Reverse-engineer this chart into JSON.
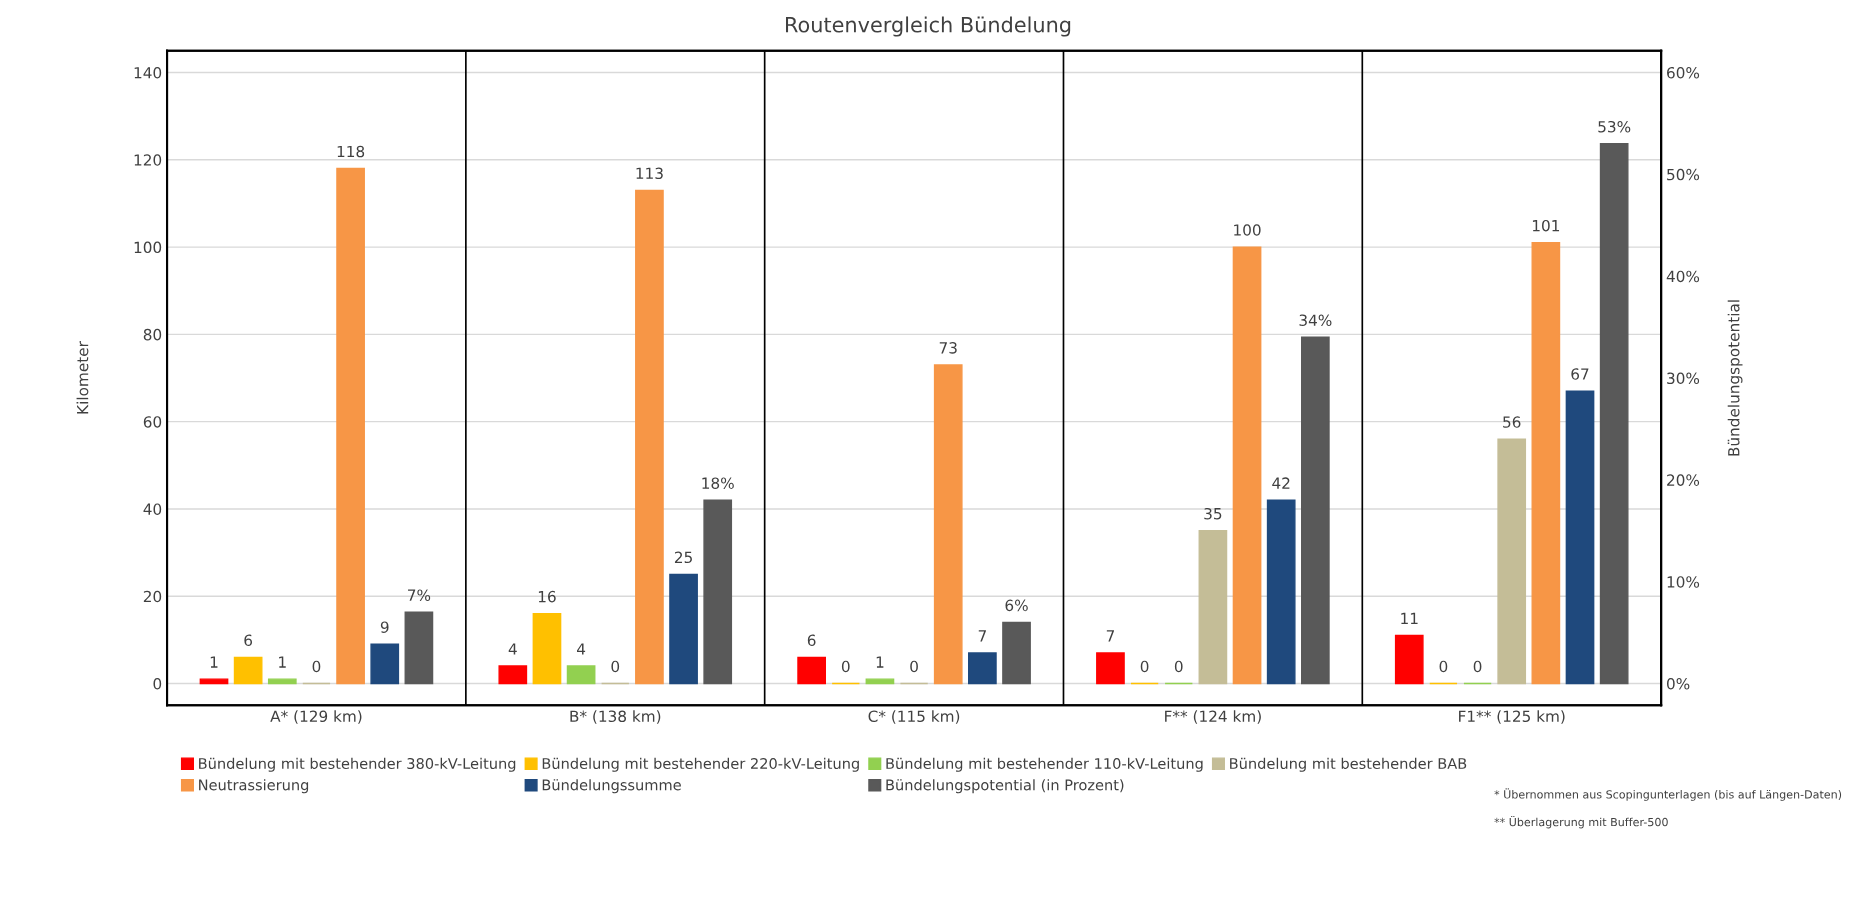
{
  "chart_data": {
    "type": "bar",
    "title": "Routenvergleich Bündelung",
    "ylabel": "Kilometer",
    "y2label": "Bündelungspotential",
    "categories": [
      "A* (129 km)",
      "B* (138 km)",
      "C* (115 km)",
      "F** (124 km)",
      "F1** (125 km)"
    ],
    "series": [
      {
        "name": "Bündelung mit bestehender 380-kV-Leitung",
        "color": "#ff0000",
        "values": [
          1,
          4,
          6,
          7,
          11
        ]
      },
      {
        "name": "Bündelung mit bestehender 220-kV-Leitung",
        "color": "#ffc000",
        "values": [
          6,
          16,
          0,
          0,
          0
        ]
      },
      {
        "name": "Bündelung mit bestehender 110-kV-Leitung",
        "color": "#92d050",
        "values": [
          1,
          4,
          1,
          0,
          0
        ]
      },
      {
        "name": "Bündelung mit bestehender BAB",
        "color": "#c4bd97",
        "values": [
          0,
          0,
          0,
          35,
          56
        ]
      },
      {
        "name": "Neutrassierung",
        "color": "#f79646",
        "values": [
          118,
          113,
          73,
          100,
          101
        ]
      },
      {
        "name": "Bündelungssumme",
        "color": "#1f497d",
        "values": [
          9,
          25,
          7,
          42,
          67
        ]
      },
      {
        "name": "Bündelungspotential (in Prozent)",
        "color": "#595959",
        "axis": "y2",
        "values": [
          7,
          18,
          6,
          34,
          53
        ],
        "value_labels": [
          "7%",
          "18%",
          "6%",
          "34%",
          "53%"
        ]
      }
    ],
    "ylim": [
      -5,
      145
    ],
    "yticks": [
      0,
      20,
      40,
      60,
      80,
      100,
      120,
      140
    ],
    "y2lim": [
      -2.14,
      62.14
    ],
    "y2ticks": [
      {
        "value": 0,
        "label": "0%"
      },
      {
        "value": 10,
        "label": "10%"
      },
      {
        "value": 20,
        "label": "20%"
      },
      {
        "value": 30,
        "label": "30%"
      },
      {
        "value": 40,
        "label": "40%"
      },
      {
        "value": 50,
        "label": "50%"
      },
      {
        "value": 60,
        "label": "60%"
      }
    ],
    "data_labels": true,
    "grid": "y",
    "legend": "bottom",
    "annotations": [
      "* Übernommen aus Scopingunterlagen (bis auf Längen-Daten)",
      "** Überlagerung mit Buffer-500"
    ]
  }
}
